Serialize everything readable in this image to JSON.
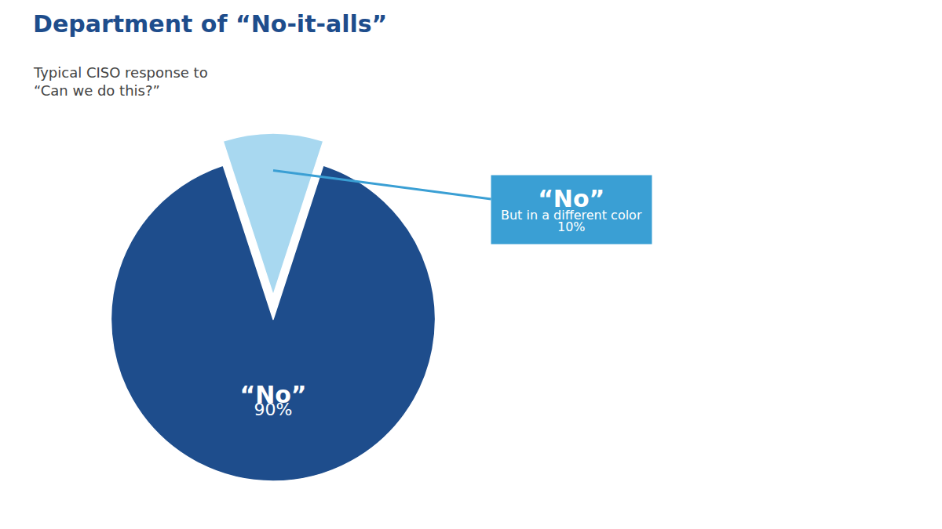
{
  "chart_data": {
    "type": "pie",
    "title": "Department of “No-it-alls”",
    "subtitle": [
      "Typical CISO response to",
      "“Can we do this?”"
    ],
    "categories": [
      "“No”",
      "“No”"
    ],
    "values": [
      90,
      10
    ],
    "value_labels": [
      "90%",
      "10%"
    ],
    "colors": [
      "#1e4d8c",
      "#a8d8f0"
    ],
    "annotations": [
      "But in a different color"
    ],
    "data_labels": true
  }
}
